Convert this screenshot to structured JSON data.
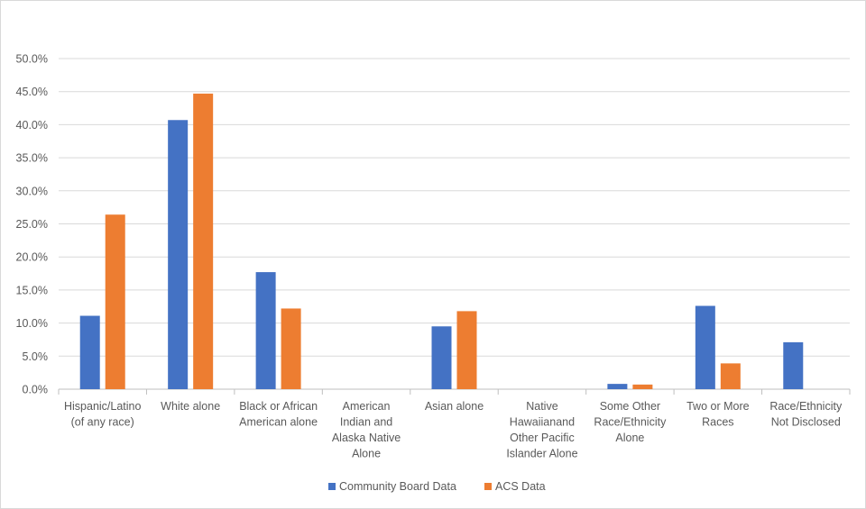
{
  "chart_data": {
    "type": "bar",
    "title": "",
    "xlabel": "",
    "ylabel": "",
    "ylim": [
      0,
      0.5
    ],
    "ytick_step": 0.05,
    "ytick_labels": [
      "0.0%",
      "5.0%",
      "10.0%",
      "15.0%",
      "20.0%",
      "25.0%",
      "30.0%",
      "35.0%",
      "40.0%",
      "45.0%",
      "50.0%"
    ],
    "grid": true,
    "legend_position": "bottom",
    "categories": [
      [
        "Hispanic/Latino",
        "(of any race)"
      ],
      [
        "White alone"
      ],
      [
        "Black or African",
        "American alone"
      ],
      [
        "American",
        "Indian and",
        "Alaska Native",
        "Alone"
      ],
      [
        "Asian alone"
      ],
      [
        "Native",
        "Hawaiianand",
        "Other Pacific",
        "Islander Alone"
      ],
      [
        "Some Other",
        "Race/Ethnicity",
        "Alone"
      ],
      [
        "Two or More",
        "Races"
      ],
      [
        "Race/Ethnicity",
        "Not Disclosed"
      ]
    ],
    "series": [
      {
        "name": "Community Board Data",
        "color": "#4472c4",
        "values": [
          0.111,
          0.407,
          0.177,
          0.0,
          0.095,
          0.0,
          0.008,
          0.126,
          0.071
        ]
      },
      {
        "name": "ACS Data",
        "color": "#ed7d31",
        "values": [
          0.264,
          0.447,
          0.122,
          0.0,
          0.118,
          0.0,
          0.007,
          0.039,
          0.0
        ]
      }
    ],
    "grid_color": "#d9d9d9",
    "axis_color": "#bfbfbf"
  }
}
